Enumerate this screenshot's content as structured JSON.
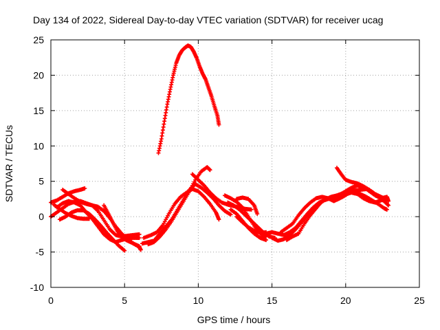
{
  "chart_data": {
    "type": "scatter",
    "title": "Day 134 of 2022, Sidereal Day-to-day VTEC variation (SDTVAR) for receiver ucag",
    "xlabel": "GPS time / hours",
    "ylabel": "SDTVAR / TECUs",
    "xlim": [
      0,
      25
    ],
    "ylim": [
      -10,
      25
    ],
    "xticks": [
      "0",
      "5",
      "10",
      "15",
      "20",
      "25"
    ],
    "yticks": [
      "25",
      "20",
      "15",
      "10",
      "5",
      "0",
      "-5",
      "-10"
    ],
    "xtick_values": [
      0,
      5,
      10,
      15,
      20,
      25
    ],
    "ytick_values": [
      25,
      20,
      15,
      10,
      5,
      0,
      -5,
      -10
    ],
    "grid": true,
    "marker": "+",
    "color": "#ff0000",
    "series": [
      {
        "name": "s1",
        "points": [
          [
            0.0,
            2.0
          ],
          [
            0.4,
            2.3
          ],
          [
            0.8,
            2.8
          ],
          [
            1.2,
            3.3
          ],
          [
            1.6,
            3.6
          ],
          [
            2.0,
            3.8
          ],
          [
            2.3,
            4.0
          ]
        ]
      },
      {
        "name": "s2",
        "points": [
          [
            0.0,
            0.0
          ],
          [
            0.4,
            0.6
          ],
          [
            0.8,
            1.2
          ],
          [
            1.2,
            1.8
          ],
          [
            1.6,
            2.1
          ],
          [
            2.0,
            2.2
          ],
          [
            2.4,
            1.9
          ],
          [
            2.8,
            1.6
          ],
          [
            3.2,
            0.8
          ],
          [
            3.6,
            -0.5
          ],
          [
            4.0,
            -1.8
          ],
          [
            4.4,
            -2.6
          ],
          [
            4.8,
            -2.8
          ],
          [
            5.2,
            -2.7
          ],
          [
            5.6,
            -2.6
          ],
          [
            6.0,
            -2.5
          ]
        ]
      },
      {
        "name": "s3",
        "points": [
          [
            0.4,
            1.3
          ],
          [
            0.8,
            1.9
          ],
          [
            1.2,
            2.2
          ],
          [
            1.6,
            2.0
          ],
          [
            2.0,
            1.6
          ],
          [
            2.4,
            0.6
          ],
          [
            2.8,
            -0.3
          ],
          [
            3.2,
            -1.4
          ],
          [
            3.6,
            -2.5
          ],
          [
            4.0,
            -3.2
          ],
          [
            4.4,
            -3.6
          ],
          [
            4.8,
            -3.3
          ],
          [
            5.2,
            -3.1
          ],
          [
            5.6,
            -3.0
          ],
          [
            6.0,
            -3.0
          ]
        ]
      },
      {
        "name": "s4",
        "points": [
          [
            0.6,
            -0.4
          ],
          [
            1.0,
            0.0
          ],
          [
            1.4,
            0.6
          ],
          [
            1.8,
            0.9
          ],
          [
            2.2,
            0.9
          ],
          [
            2.6,
            0.4
          ],
          [
            3.0,
            -0.4
          ],
          [
            3.4,
            -1.3
          ],
          [
            3.8,
            -2.3
          ],
          [
            4.2,
            -3.2
          ],
          [
            4.6,
            -4.1
          ],
          [
            5.0,
            -4.8
          ]
        ]
      },
      {
        "name": "s5",
        "points": [
          [
            0.2,
            1.7
          ],
          [
            0.6,
            1.1
          ],
          [
            1.0,
            0.5
          ],
          [
            1.4,
            0.1
          ],
          [
            1.8,
            -0.2
          ],
          [
            2.2,
            -0.3
          ],
          [
            2.6,
            -0.3
          ]
        ]
      },
      {
        "name": "s6",
        "points": [
          [
            0.8,
            3.8
          ],
          [
            1.2,
            3.2
          ],
          [
            1.6,
            2.6
          ],
          [
            2.0,
            2.1
          ],
          [
            2.4,
            1.8
          ],
          [
            2.8,
            1.6
          ],
          [
            3.2,
            1.4
          ],
          [
            3.6,
            0.8
          ],
          [
            4.0,
            -0.2
          ],
          [
            4.4,
            -1.4
          ],
          [
            4.8,
            -2.4
          ],
          [
            5.2,
            -3.2
          ],
          [
            5.6,
            -3.8
          ],
          [
            6.0,
            -4.3
          ],
          [
            6.1,
            -4.7
          ]
        ]
      },
      {
        "name": "s7",
        "points": [
          [
            3.6,
            1.6
          ],
          [
            3.9,
            0.4
          ],
          [
            4.2,
            -0.8
          ],
          [
            4.5,
            -2.0
          ],
          [
            4.8,
            -2.8
          ],
          [
            5.1,
            -3.3
          ],
          [
            5.4,
            -3.6
          ],
          [
            5.8,
            -4.0
          ],
          [
            6.0,
            -4.2
          ]
        ]
      },
      {
        "name": "s8",
        "points": [
          [
            6.3,
            -3.0
          ],
          [
            6.8,
            -2.6
          ],
          [
            7.2,
            -2.2
          ],
          [
            7.6,
            -1.2
          ],
          [
            8.0,
            0.4
          ],
          [
            8.4,
            1.8
          ],
          [
            8.8,
            2.8
          ],
          [
            9.2,
            3.4
          ],
          [
            9.6,
            3.9
          ],
          [
            10.0,
            3.6
          ],
          [
            10.4,
            2.8
          ],
          [
            10.8,
            1.8
          ],
          [
            11.2,
            0.6
          ],
          [
            11.4,
            -0.4
          ]
        ]
      },
      {
        "name": "s9",
        "points": [
          [
            6.2,
            -3.8
          ],
          [
            6.6,
            -3.6
          ],
          [
            7.0,
            -3.4
          ],
          [
            7.4,
            -2.4
          ],
          [
            7.8,
            -1.4
          ],
          [
            8.2,
            -0.4
          ],
          [
            8.6,
            1.0
          ],
          [
            9.0,
            2.4
          ],
          [
            9.4,
            3.8
          ],
          [
            9.8,
            4.6
          ],
          [
            10.2,
            4.1
          ],
          [
            10.6,
            3.4
          ],
          [
            11.0,
            2.6
          ],
          [
            11.4,
            1.6
          ],
          [
            11.8,
            0.8
          ],
          [
            12.2,
            0.3
          ]
        ]
      },
      {
        "name": "s10",
        "points": [
          [
            6.6,
            -3.9
          ],
          [
            7.0,
            -3.6
          ],
          [
            7.4,
            -2.8
          ],
          [
            7.8,
            -1.8
          ],
          [
            8.2,
            -0.6
          ],
          [
            8.6,
            0.8
          ],
          [
            9.0,
            2.2
          ],
          [
            9.4,
            3.6
          ],
          [
            9.8,
            5.2
          ],
          [
            10.2,
            6.4
          ],
          [
            10.6,
            7.0
          ],
          [
            10.8,
            6.6
          ]
        ]
      },
      {
        "name": "s11",
        "points": [
          [
            9.6,
            6.0
          ],
          [
            10.0,
            5.2
          ],
          [
            10.4,
            4.4
          ],
          [
            10.8,
            3.4
          ],
          [
            11.2,
            2.6
          ],
          [
            11.6,
            2.0
          ],
          [
            12.0,
            1.7
          ],
          [
            12.4,
            1.5
          ],
          [
            12.8,
            1.3
          ],
          [
            13.2,
            1.1
          ],
          [
            13.6,
            1.0
          ]
        ]
      },
      {
        "name": "s12",
        "points": [
          [
            7.3,
            9.0
          ],
          [
            7.5,
            11.0
          ],
          [
            7.7,
            13.5
          ],
          [
            7.9,
            15.9
          ],
          [
            8.1,
            18.0
          ],
          [
            8.3,
            20.0
          ],
          [
            8.5,
            21.7
          ],
          [
            8.7,
            22.8
          ],
          [
            8.9,
            23.5
          ],
          [
            9.1,
            23.9
          ],
          [
            9.3,
            24.2
          ],
          [
            9.5,
            24.0
          ],
          [
            9.7,
            23.3
          ],
          [
            9.9,
            22.4
          ],
          [
            10.1,
            21.2
          ],
          [
            10.3,
            20.2
          ],
          [
            10.5,
            19.4
          ],
          [
            10.7,
            18.2
          ],
          [
            10.9,
            17.0
          ],
          [
            11.1,
            15.6
          ],
          [
            11.3,
            14.3
          ],
          [
            11.4,
            13.0
          ]
        ]
      },
      {
        "name": "s13",
        "points": [
          [
            11.8,
            3.0
          ],
          [
            12.2,
            2.6
          ],
          [
            12.6,
            2.1
          ],
          [
            13.0,
            1.3
          ],
          [
            13.4,
            0.0
          ],
          [
            13.8,
            -1.3
          ],
          [
            14.2,
            -2.4
          ],
          [
            14.6,
            -2.8
          ]
        ]
      },
      {
        "name": "s14",
        "points": [
          [
            12.0,
            2.0
          ],
          [
            12.4,
            1.6
          ],
          [
            12.8,
            1.0
          ],
          [
            13.2,
            0.2
          ],
          [
            13.6,
            -0.6
          ],
          [
            14.0,
            -1.4
          ],
          [
            14.4,
            -2.2
          ],
          [
            14.8,
            -2.8
          ],
          [
            15.2,
            -3.0
          ]
        ]
      },
      {
        "name": "s15",
        "points": [
          [
            12.2,
            1.0
          ],
          [
            12.6,
            0.4
          ],
          [
            13.0,
            -0.6
          ],
          [
            13.4,
            -1.6
          ],
          [
            13.8,
            -2.4
          ],
          [
            14.2,
            -3.0
          ],
          [
            14.6,
            -3.3
          ]
        ]
      },
      {
        "name": "s16",
        "points": [
          [
            12.6,
            2.5
          ],
          [
            13.0,
            2.7
          ],
          [
            13.4,
            2.5
          ],
          [
            13.8,
            1.6
          ],
          [
            14.0,
            0.4
          ]
        ]
      },
      {
        "name": "s17",
        "points": [
          [
            12.6,
            0.0
          ],
          [
            13.0,
            -0.8
          ],
          [
            13.4,
            -1.5
          ],
          [
            13.8,
            -2.0
          ],
          [
            14.2,
            -2.3
          ],
          [
            14.6,
            -2.2
          ]
        ]
      },
      {
        "name": "s18",
        "points": [
          [
            14.6,
            -2.4
          ],
          [
            15.0,
            -2.2
          ],
          [
            15.4,
            -2.4
          ],
          [
            15.8,
            -2.6
          ],
          [
            16.2,
            -2.2
          ],
          [
            16.6,
            -1.6
          ],
          [
            17.0,
            -0.6
          ],
          [
            17.4,
            0.4
          ],
          [
            17.8,
            1.3
          ],
          [
            18.2,
            2.0
          ],
          [
            18.6,
            2.4
          ],
          [
            19.0,
            2.8
          ],
          [
            19.4,
            3.0
          ],
          [
            19.8,
            3.3
          ],
          [
            20.2,
            3.5
          ],
          [
            20.6,
            3.7
          ],
          [
            21.0,
            3.8
          ],
          [
            21.4,
            3.9
          ],
          [
            21.8,
            3.5
          ],
          [
            22.2,
            2.8
          ],
          [
            22.6,
            2.2
          ],
          [
            22.9,
            1.6
          ]
        ]
      },
      {
        "name": "s19",
        "points": [
          [
            15.0,
            -3.0
          ],
          [
            15.4,
            -3.4
          ],
          [
            15.8,
            -3.2
          ],
          [
            16.2,
            -2.6
          ],
          [
            16.6,
            -1.8
          ],
          [
            17.0,
            -0.8
          ],
          [
            17.4,
            0.2
          ],
          [
            17.8,
            1.0
          ],
          [
            18.2,
            1.8
          ],
          [
            18.6,
            2.4
          ],
          [
            19.0,
            2.6
          ],
          [
            19.4,
            2.4
          ],
          [
            19.8,
            2.8
          ],
          [
            20.2,
            3.3
          ],
          [
            20.6,
            3.6
          ],
          [
            21.0,
            3.2
          ],
          [
            21.4,
            2.8
          ],
          [
            21.8,
            2.3
          ],
          [
            22.2,
            1.8
          ],
          [
            22.6,
            1.2
          ],
          [
            22.8,
            1.0
          ]
        ]
      },
      {
        "name": "s20",
        "points": [
          [
            15.6,
            -2.2
          ],
          [
            16.0,
            -1.6
          ],
          [
            16.4,
            -1.0
          ],
          [
            16.8,
            0.2
          ],
          [
            17.2,
            1.2
          ],
          [
            17.6,
            2.0
          ],
          [
            18.0,
            2.6
          ],
          [
            18.4,
            2.8
          ],
          [
            18.8,
            2.6
          ],
          [
            19.2,
            2.2
          ],
          [
            19.6,
            2.6
          ],
          [
            20.0,
            3.2
          ],
          [
            20.4,
            3.4
          ],
          [
            20.8,
            3.2
          ],
          [
            21.2,
            2.6
          ],
          [
            21.6,
            2.2
          ],
          [
            22.0,
            2.0
          ],
          [
            22.4,
            2.3
          ],
          [
            22.8,
            2.6
          ]
        ]
      },
      {
        "name": "s21",
        "points": [
          [
            19.4,
            6.9
          ],
          [
            19.7,
            6.0
          ],
          [
            20.0,
            5.2
          ],
          [
            20.4,
            4.9
          ],
          [
            20.8,
            4.7
          ],
          [
            21.2,
            4.3
          ],
          [
            21.6,
            3.8
          ],
          [
            22.0,
            3.2
          ],
          [
            22.4,
            2.8
          ],
          [
            22.8,
            2.4
          ]
        ]
      },
      {
        "name": "s22",
        "points": [
          [
            16.0,
            -3.3
          ],
          [
            16.4,
            -2.8
          ],
          [
            16.8,
            -2.4
          ],
          [
            17.2,
            -1.0
          ],
          [
            17.6,
            0.2
          ],
          [
            18.0,
            1.2
          ],
          [
            18.4,
            2.2
          ],
          [
            18.8,
            2.5
          ],
          [
            19.2,
            2.8
          ],
          [
            19.6,
            3.1
          ],
          [
            20.0,
            3.6
          ],
          [
            20.4,
            4.1
          ],
          [
            20.8,
            4.4
          ],
          [
            21.2,
            4.2
          ],
          [
            21.6,
            3.6
          ],
          [
            22.0,
            3.0
          ],
          [
            22.4,
            2.6
          ],
          [
            22.8,
            2.8
          ],
          [
            22.9,
            2.2
          ]
        ]
      }
    ]
  }
}
